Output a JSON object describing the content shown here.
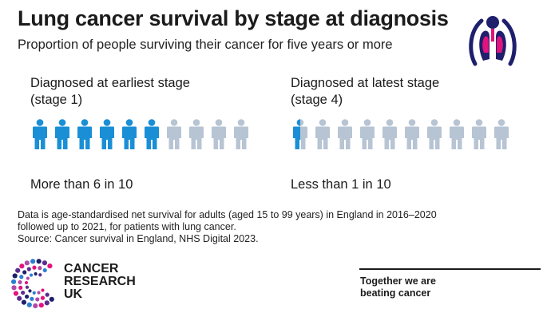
{
  "title": "Lung cancer survival by stage at diagnosis",
  "subtitle": "Proportion of people surviving their cancer for five years or more",
  "icon": "lungs-icon",
  "colors": {
    "survived": "#1a8fd6",
    "not_survived": "#b7c4d3",
    "brand_navy": "#1f1f6e",
    "brand_pink": "#e2137d"
  },
  "groups": [
    {
      "heading_line1": "Diagnosed at earliest stage",
      "heading_line2": "(stage 1)",
      "caption": "More than 6 in 10",
      "survival_fraction": 0.6,
      "icon_count": 10
    },
    {
      "heading_line1": "Diagnosed at latest stage",
      "heading_line2": "(stage 4)",
      "caption": "Less than 1 in 10",
      "survival_fraction": 0.05,
      "icon_count": 10
    }
  ],
  "note": {
    "line1": "Data is age-standardised net survival for adults (aged 15 to 99 years) in England in 2016–2020",
    "line2": "followed up to 2021, for patients with lung cancer.",
    "line3": "Source: Cancer survival in England, NHS Digital 2023."
  },
  "logo": {
    "line1": "CANCER",
    "line2": "RESEARCH",
    "line3": "UK"
  },
  "tagline": {
    "line1": "Together we are",
    "line2": "beating cancer"
  }
}
